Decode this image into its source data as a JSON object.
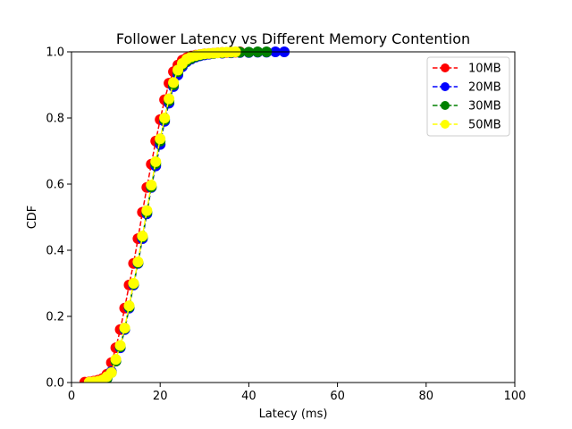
{
  "chart_data": {
    "type": "line",
    "title": "Follower Latency vs Different Memory Contention",
    "xlabel": "Latecy (ms)",
    "ylabel": "CDF",
    "xlim": [
      0,
      100
    ],
    "ylim": [
      0,
      1.0
    ],
    "xticks": [
      0,
      20,
      40,
      60,
      80,
      100
    ],
    "yticks": [
      0.0,
      0.2,
      0.4,
      0.6,
      0.8,
      1.0
    ],
    "xtick_labels": [
      "0",
      "20",
      "40",
      "60",
      "80",
      "100"
    ],
    "ytick_labels": [
      "0.0",
      "0.2",
      "0.4",
      "0.6",
      "0.8",
      "1.0"
    ],
    "grid": false,
    "legend_position": "top-right",
    "series": [
      {
        "name": "10MB",
        "color": "#ff0000",
        "marker": "circle",
        "line_style": "dashed",
        "x": [
          3,
          4,
          5,
          6,
          7,
          8,
          9,
          10,
          11,
          12,
          13,
          14,
          15,
          16,
          17,
          18,
          19,
          20,
          21,
          22,
          23,
          24,
          25,
          26,
          27,
          28,
          29,
          30,
          31,
          32,
          33,
          34,
          35,
          36,
          37,
          38
        ],
        "y": [
          0.001,
          0.002,
          0.004,
          0.007,
          0.012,
          0.025,
          0.06,
          0.105,
          0.16,
          0.225,
          0.295,
          0.36,
          0.435,
          0.515,
          0.59,
          0.66,
          0.73,
          0.795,
          0.855,
          0.905,
          0.94,
          0.96,
          0.975,
          0.982,
          0.987,
          0.99,
          0.992,
          0.994,
          0.995,
          0.996,
          0.997,
          0.998,
          0.998,
          0.999,
          0.999,
          1.0
        ]
      },
      {
        "name": "20MB",
        "color": "#0000ff",
        "marker": "circle",
        "line_style": "dashed",
        "x": [
          5,
          6,
          7,
          8,
          9,
          10,
          11,
          12,
          13,
          14,
          15,
          16,
          17,
          18,
          19,
          20,
          21,
          22,
          23,
          24,
          25,
          26,
          27,
          28,
          29,
          30,
          31,
          32,
          34,
          36,
          38,
          40,
          42,
          44,
          46,
          48
        ],
        "y": [
          0.001,
          0.003,
          0.006,
          0.012,
          0.033,
          0.065,
          0.105,
          0.16,
          0.225,
          0.295,
          0.36,
          0.435,
          0.51,
          0.59,
          0.655,
          0.72,
          0.79,
          0.845,
          0.895,
          0.93,
          0.955,
          0.97,
          0.978,
          0.984,
          0.988,
          0.991,
          0.993,
          0.995,
          0.996,
          0.997,
          0.998,
          0.998,
          0.999,
          0.999,
          1.0,
          1.0
        ]
      },
      {
        "name": "30MB",
        "color": "#008000",
        "marker": "circle",
        "line_style": "dashed",
        "x": [
          5,
          6,
          7,
          8,
          9,
          10,
          11,
          12,
          13,
          14,
          15,
          16,
          17,
          18,
          19,
          20,
          21,
          22,
          23,
          24,
          25,
          26,
          27,
          28,
          29,
          30,
          32,
          34,
          36,
          38,
          40,
          42,
          44
        ],
        "y": [
          0.001,
          0.003,
          0.006,
          0.012,
          0.03,
          0.065,
          0.108,
          0.163,
          0.228,
          0.298,
          0.362,
          0.44,
          0.515,
          0.592,
          0.662,
          0.73,
          0.795,
          0.852,
          0.9,
          0.94,
          0.96,
          0.973,
          0.98,
          0.986,
          0.99,
          0.993,
          0.995,
          0.997,
          0.998,
          0.999,
          0.999,
          1.0,
          1.0
        ]
      },
      {
        "name": "50MB",
        "color": "#ffff00",
        "marker": "circle",
        "line_style": "dashed",
        "x": [
          4,
          5,
          6,
          7,
          8,
          9,
          10,
          11,
          12,
          13,
          14,
          15,
          16,
          17,
          18,
          19,
          20,
          21,
          22,
          23,
          24,
          25,
          26,
          27,
          28,
          29,
          30,
          31,
          32,
          33,
          34,
          35,
          36,
          37
        ],
        "y": [
          0.001,
          0.002,
          0.004,
          0.008,
          0.018,
          0.03,
          0.07,
          0.112,
          0.165,
          0.232,
          0.3,
          0.365,
          0.443,
          0.52,
          0.597,
          0.668,
          0.737,
          0.8,
          0.858,
          0.907,
          0.945,
          0.965,
          0.978,
          0.985,
          0.989,
          0.992,
          0.994,
          0.995,
          0.996,
          0.997,
          0.998,
          0.999,
          0.999,
          1.0
        ]
      }
    ]
  }
}
